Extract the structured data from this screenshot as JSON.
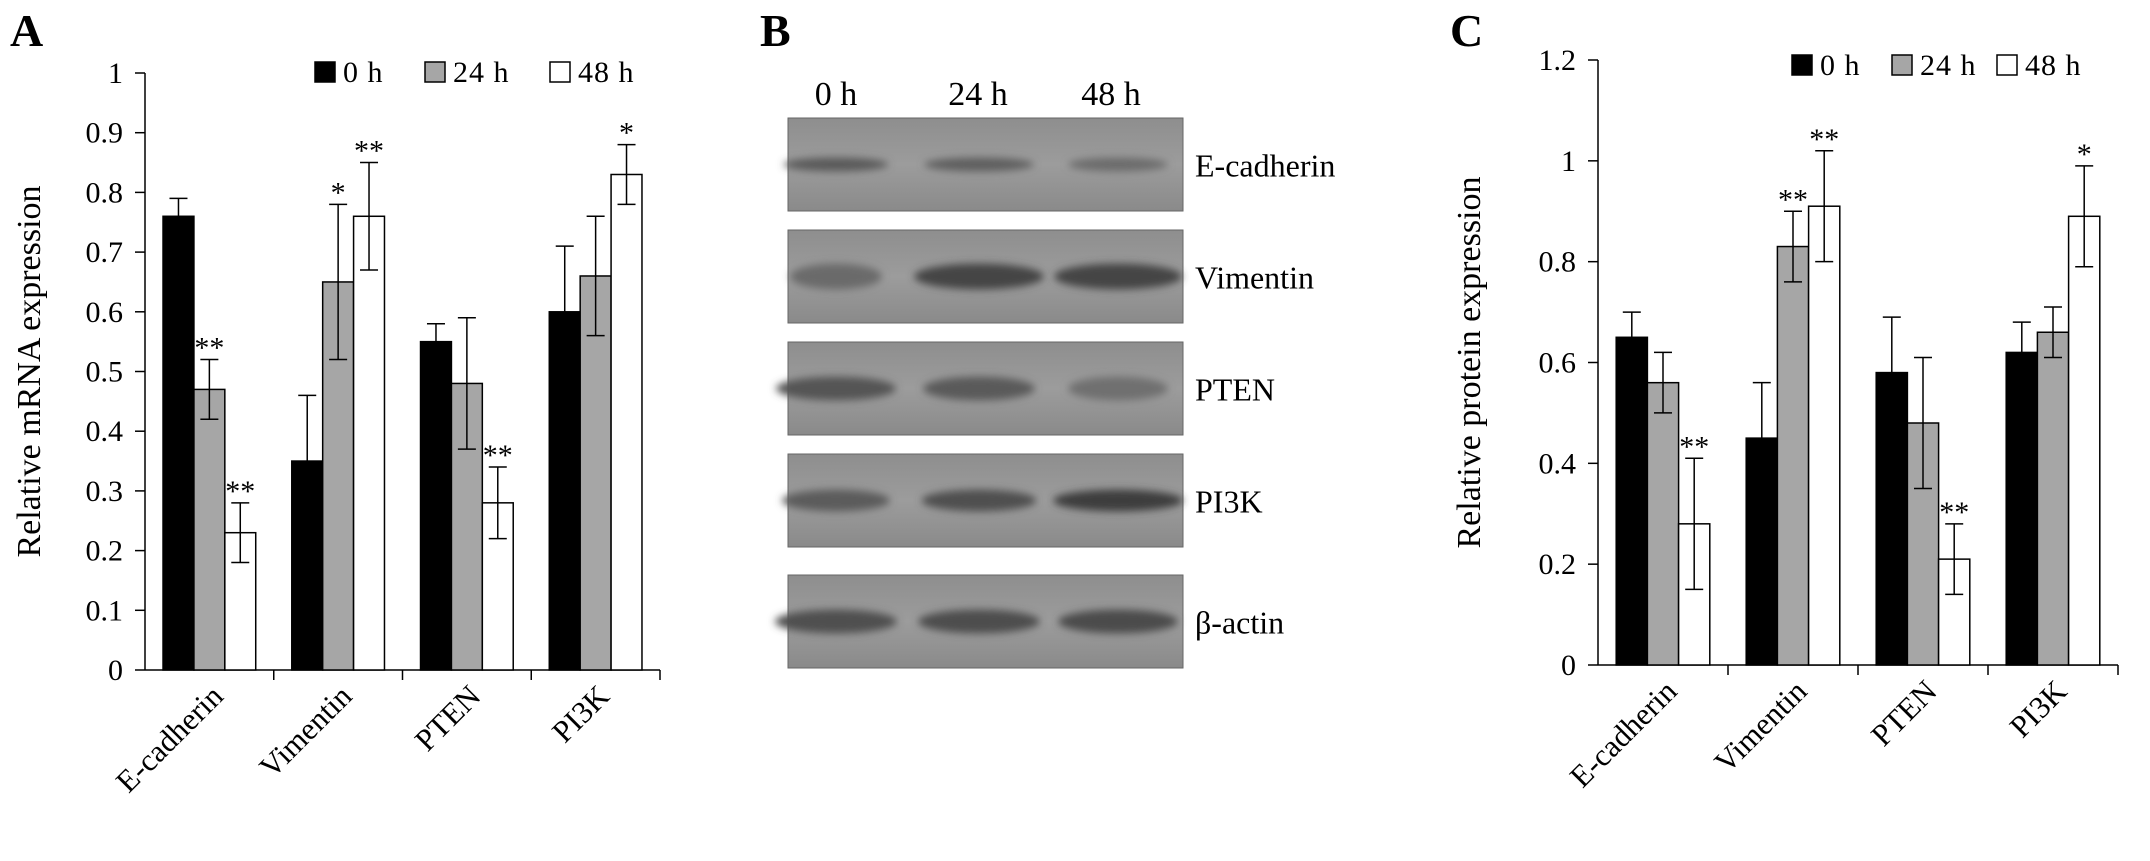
{
  "colors": {
    "s0": "#000000",
    "s24": "#a6a6a6",
    "s48": "#ffffff",
    "stroke": "#000000"
  },
  "panels": {
    "a": {
      "letter": "A"
    },
    "b": {
      "letter": "B",
      "lanes": [
        "0 h",
        "24 h",
        "48 h"
      ],
      "blots": [
        "E-cadherin",
        "Vimentin",
        "PTEN",
        "PI3K",
        "β-actin"
      ]
    },
    "c": {
      "letter": "C"
    }
  },
  "chart_data": [
    {
      "id": "A",
      "type": "bar",
      "ylabel": "Relative mRNA expression",
      "ylim": [
        0,
        1
      ],
      "yticks": [
        0,
        0.1,
        0.2,
        0.3,
        0.4,
        0.5,
        0.6,
        0.7,
        0.8,
        0.9,
        1
      ],
      "ytick_labels": [
        "0",
        "0.1",
        "0.2",
        "0.3",
        "0.4",
        "0.5",
        "0.6",
        "0.7",
        "0.8",
        "0.9",
        "1"
      ],
      "legend_position": "top-right",
      "categories": [
        "E-cadherin",
        "Vimentin",
        "PTEN",
        "PI3K"
      ],
      "series": [
        {
          "name": "0 h",
          "color": "#000000",
          "values": [
            0.76,
            0.35,
            0.55,
            0.6
          ],
          "errors": [
            0.03,
            0.11,
            0.03,
            0.11
          ],
          "marks": [
            "",
            "",
            "",
            ""
          ]
        },
        {
          "name": "24 h",
          "color": "#a6a6a6",
          "values": [
            0.47,
            0.65,
            0.48,
            0.66
          ],
          "errors": [
            0.05,
            0.13,
            0.11,
            0.1
          ],
          "marks": [
            "**",
            "*",
            "",
            ""
          ]
        },
        {
          "name": "48 h",
          "color": "#ffffff",
          "values": [
            0.23,
            0.76,
            0.28,
            0.83
          ],
          "errors": [
            0.05,
            0.09,
            0.06,
            0.05
          ],
          "marks": [
            "**",
            "**",
            "**",
            "*"
          ]
        }
      ]
    },
    {
      "id": "C",
      "type": "bar",
      "ylabel": "Relative protein expression",
      "ylim": [
        0,
        1.2
      ],
      "yticks": [
        0,
        0.2,
        0.4,
        0.6,
        0.8,
        1,
        1.2
      ],
      "ytick_labels": [
        "0",
        "0.2",
        "0.4",
        "0.6",
        "0.8",
        "1",
        "1.2"
      ],
      "legend_position": "top-right",
      "categories": [
        "E-cadherin",
        "Vimentin",
        "PTEN",
        "PI3K"
      ],
      "series": [
        {
          "name": "0 h",
          "color": "#000000",
          "values": [
            0.65,
            0.45,
            0.58,
            0.62
          ],
          "errors": [
            0.05,
            0.11,
            0.11,
            0.06
          ],
          "marks": [
            "",
            "",
            "",
            ""
          ]
        },
        {
          "name": "24 h",
          "color": "#a6a6a6",
          "values": [
            0.56,
            0.83,
            0.48,
            0.66
          ],
          "errors": [
            0.06,
            0.07,
            0.13,
            0.05
          ],
          "marks": [
            "",
            "**",
            "",
            ""
          ]
        },
        {
          "name": "48 h",
          "color": "#ffffff",
          "values": [
            0.28,
            0.91,
            0.21,
            0.89
          ],
          "errors": [
            0.13,
            0.11,
            0.07,
            0.1
          ],
          "marks": [
            "**",
            "**",
            "**",
            "*"
          ]
        }
      ]
    }
  ]
}
